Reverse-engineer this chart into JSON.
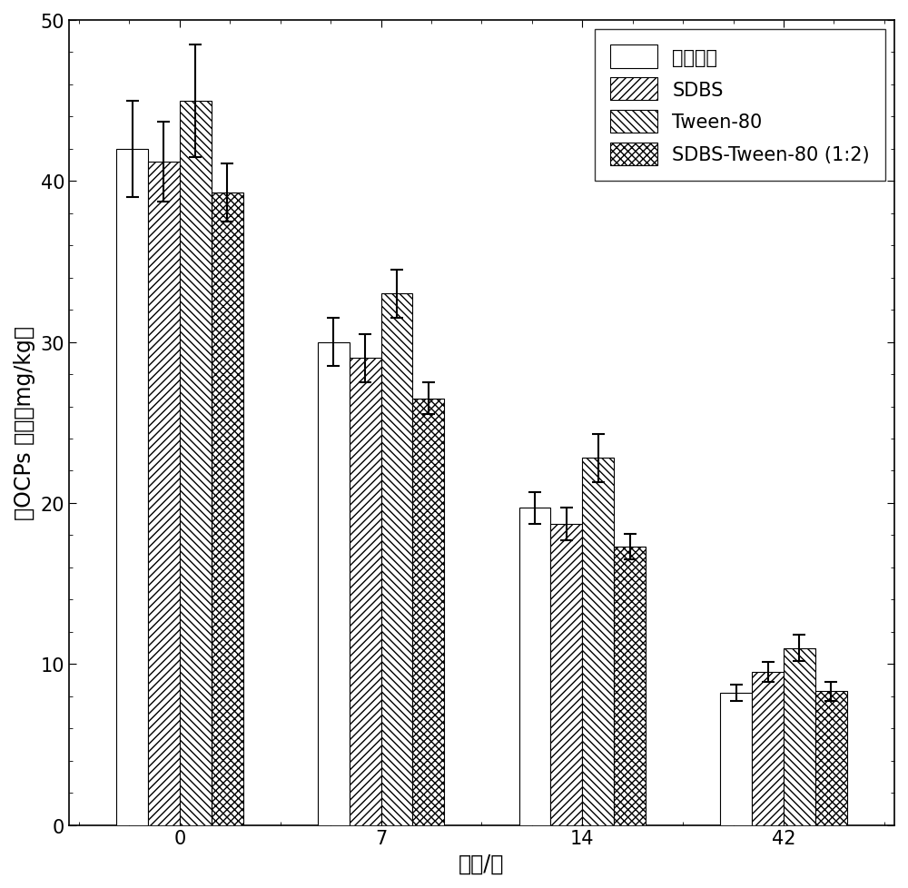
{
  "time_labels": [
    "0",
    "7",
    "14",
    "42"
  ],
  "series": [
    {
      "label": "鼠李糖脂",
      "values": [
        42.0,
        30.0,
        19.7,
        8.2
      ],
      "errors": [
        3.0,
        1.5,
        1.0,
        0.5
      ],
      "hatch": "",
      "facecolor": "#ffffff",
      "edgecolor": "#000000"
    },
    {
      "label": "SDBS",
      "values": [
        41.2,
        29.0,
        18.7,
        9.5
      ],
      "errors": [
        2.5,
        1.5,
        1.0,
        0.6
      ],
      "hatch": "////",
      "facecolor": "#ffffff",
      "edgecolor": "#000000"
    },
    {
      "label": "Tween-80",
      "values": [
        45.0,
        33.0,
        22.8,
        11.0
      ],
      "errors": [
        3.5,
        1.5,
        1.5,
        0.8
      ],
      "hatch": "\\\\\\\\",
      "facecolor": "#ffffff",
      "edgecolor": "#000000"
    },
    {
      "label": "SDBS-Tween-80 (1:2)",
      "values": [
        39.3,
        26.5,
        17.3,
        8.3
      ],
      "errors": [
        1.8,
        1.0,
        0.8,
        0.6
      ],
      "hatch": "xxxx",
      "facecolor": "#ffffff",
      "edgecolor": "#000000"
    }
  ],
  "ylabel": "总OCPs 含量（mg/kg）",
  "xlabel": "时间/天",
  "ylim": [
    0,
    50
  ],
  "yticks": [
    0,
    10,
    20,
    30,
    40,
    50
  ],
  "bar_width": 0.55,
  "group_centers": [
    0,
    3.5,
    7.0,
    10.5
  ],
  "legend_fontsize": 15,
  "axis_fontsize": 17,
  "tick_fontsize": 15
}
